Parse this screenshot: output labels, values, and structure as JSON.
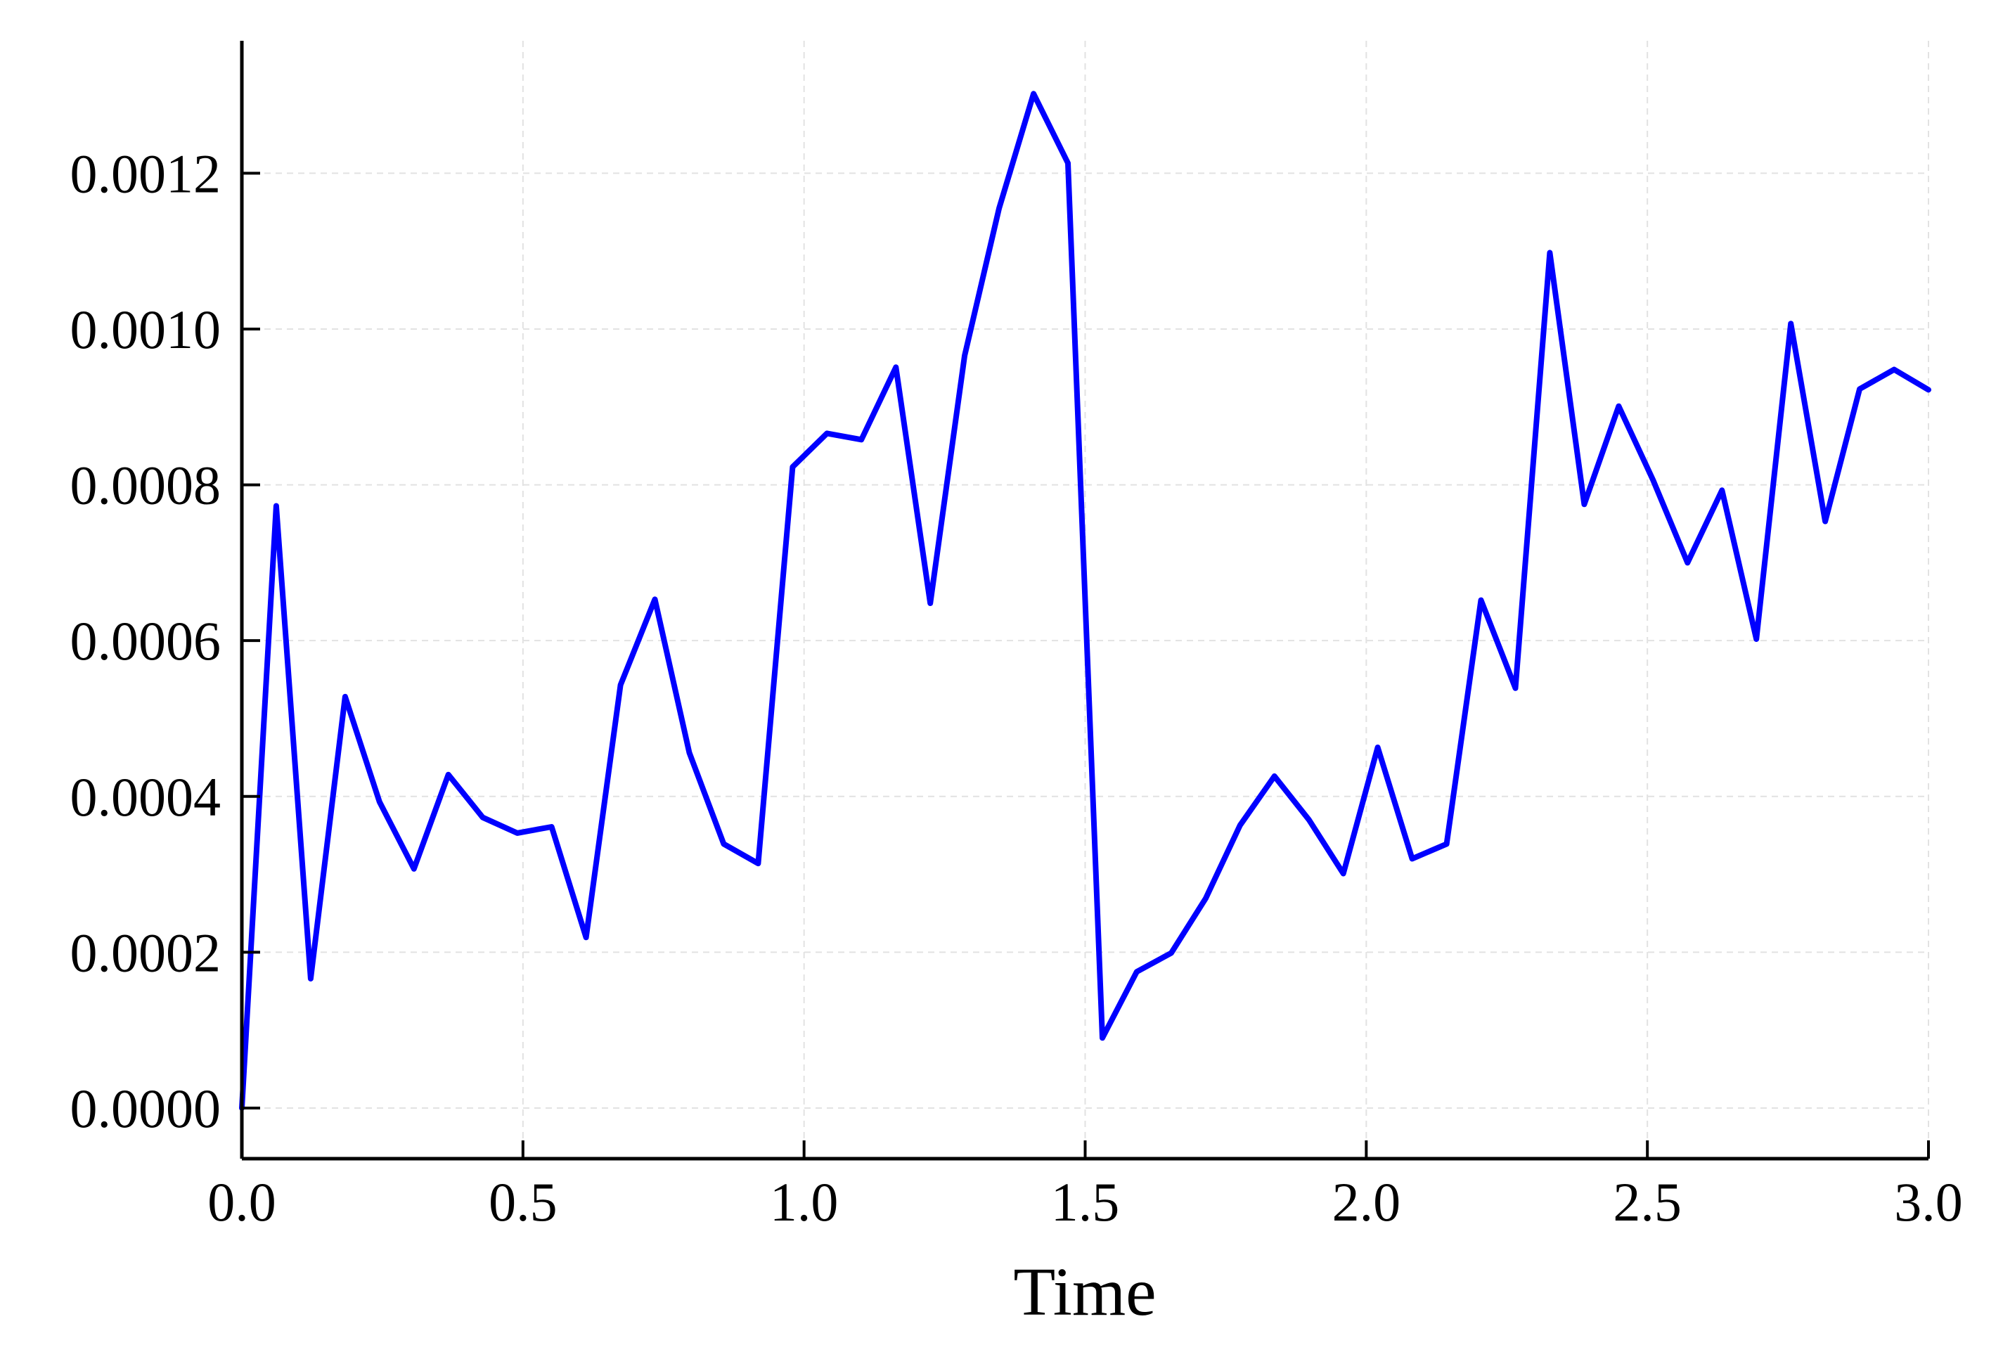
{
  "chart_data": {
    "type": "line",
    "title": "",
    "xlabel": "Time",
    "ylabel": "",
    "xlim": [
      0.0,
      3.0
    ],
    "ylim": [
      -6.5e-05,
      0.00137
    ],
    "xticks": [
      0.0,
      0.5,
      1.0,
      1.5,
      2.0,
      2.5,
      3.0
    ],
    "xtick_labels": [
      "0.0",
      "0.5",
      "1.0",
      "1.5",
      "2.0",
      "2.5",
      "3.0"
    ],
    "yticks": [
      0.0,
      0.0002,
      0.0004,
      0.0006,
      0.0008,
      0.001,
      0.0012
    ],
    "ytick_labels": [
      "0.0000",
      "0.0002",
      "0.0004",
      "0.0006",
      "0.0008",
      "0.0010",
      "0.0012"
    ],
    "grid": true,
    "legend": "none",
    "color": "#0000ff",
    "series": [
      {
        "x": [
          0.0,
          0.0612,
          0.1224,
          0.1837,
          0.2449,
          0.3061,
          0.3673,
          0.4286,
          0.4898,
          0.551,
          0.6122,
          0.6735,
          0.7347,
          0.7959,
          0.8571,
          0.9184,
          0.9796,
          1.0408,
          1.102,
          1.1633,
          1.2245,
          1.2857,
          1.3469,
          1.4082,
          1.4694,
          1.5306,
          1.5918,
          1.6531,
          1.7143,
          1.7755,
          1.8367,
          1.898,
          1.9592,
          2.0204,
          2.0816,
          2.1429,
          2.2041,
          2.2653,
          2.3265,
          2.3878,
          2.449,
          2.5102,
          2.5714,
          2.6327,
          2.6939,
          2.7551,
          2.8163,
          2.8776,
          2.9388,
          3.0
        ],
        "y": [
          0.0,
          0.000773,
          0.000166,
          0.000528,
          0.000393,
          0.000307,
          0.000428,
          0.000373,
          0.000353,
          0.000361,
          0.000219,
          0.000543,
          0.000653,
          0.000456,
          0.000339,
          0.000314,
          0.000823,
          0.000866,
          0.000858,
          0.000951,
          0.000648,
          0.000966,
          0.001155,
          0.001302,
          0.001213,
          9e-05,
          0.000175,
          0.000199,
          0.000269,
          0.000363,
          0.000426,
          0.00037,
          0.000301,
          0.000463,
          0.00032,
          0.000339,
          0.000652,
          0.000539,
          0.001098,
          0.000775,
          0.000901,
          0.000806,
          0.0007,
          0.000793,
          0.000602,
          0.001007,
          0.000753,
          0.000923,
          0.000948,
          0.000922
        ]
      }
    ]
  }
}
